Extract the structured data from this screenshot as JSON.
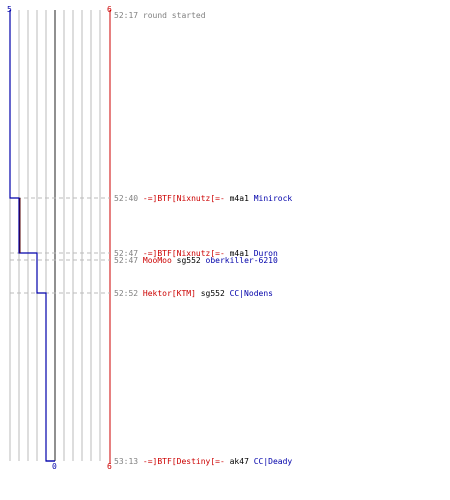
{
  "chart_data": {
    "type": "line",
    "title": "",
    "xlabel": "",
    "ylabel": "",
    "axis_ends": {
      "left_top_label": "5",
      "red_top_label": "6",
      "center_bottom_label": "0",
      "red_bottom_label": "6"
    },
    "events": [
      {
        "time": "52:17",
        "text": [
          {
            "t": "round started",
            "color": "#808080"
          }
        ]
      },
      {
        "time": "52:40",
        "text": [
          {
            "t": "-=]BTF[Nixnutz[=-",
            "color": "#cc0000"
          },
          {
            "t": " m4a1 ",
            "color": "#000000"
          },
          {
            "t": "Minirock",
            "color": "#0000aa"
          }
        ]
      },
      {
        "time": "52:47",
        "text": [
          {
            "t": "-=]BTF[Nixnutz[=-",
            "color": "#cc0000"
          },
          {
            "t": " m4a1 ",
            "color": "#000000"
          },
          {
            "t": "Duron",
            "color": "#0000aa"
          }
        ]
      },
      {
        "time": "52:47",
        "text": [
          {
            "t": "MooMoo",
            "color": "#cc0000"
          },
          {
            "t": " sg552 ",
            "color": "#000000"
          },
          {
            "t": "oberkiller-6210",
            "color": "#0000aa"
          }
        ]
      },
      {
        "time": "52:52",
        "text": [
          {
            "t": "Hektor[KTM]",
            "color": "#cc0000"
          },
          {
            "t": " sg552 ",
            "color": "#000000"
          },
          {
            "t": "CC|Nodens",
            "color": "#0000aa"
          }
        ]
      },
      {
        "time": "53:13",
        "text": [
          {
            "t": "-=]BTF[Destiny[=-",
            "color": "#cc0000"
          },
          {
            "t": " ak47 ",
            "color": "#000000"
          },
          {
            "t": "CC|Deady",
            "color": "#0000aa"
          }
        ]
      }
    ],
    "series": [
      {
        "color": "#0000aa",
        "steps": [
          {
            "time": "52:17",
            "value": 5
          },
          {
            "time": "52:40",
            "value": 4
          },
          {
            "time": "52:47",
            "value": 2
          },
          {
            "time": "52:52",
            "value": 1
          },
          {
            "time": "53:13",
            "value": 0
          }
        ]
      },
      {
        "color": "#aa0000",
        "steps": [
          {
            "time": "52:17",
            "value": 6
          },
          {
            "time": "53:13",
            "value": 6
          }
        ]
      }
    ],
    "colors": {
      "time": "#808080",
      "grid": "#bbbbbb",
      "dashed": "#bbbbbb",
      "center_line": "#555555",
      "red_line": "#cc0000",
      "blue_line": "#0000aa"
    }
  }
}
